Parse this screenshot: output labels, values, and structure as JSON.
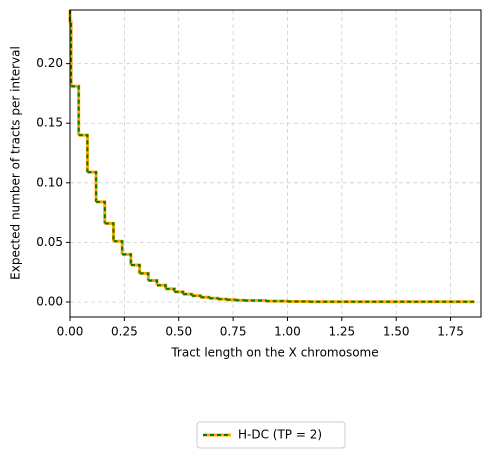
{
  "chart_data": {
    "type": "step",
    "xlabel": "Tract length on the X chromosome",
    "ylabel": "Expected number of tracts per interval",
    "x": [
      0,
      0.005,
      0.04,
      0.08,
      0.12,
      0.16,
      0.2,
      0.24,
      0.28,
      0.32,
      0.36,
      0.4,
      0.44,
      0.48,
      0.52,
      0.56,
      0.6,
      0.64,
      0.68,
      0.72,
      0.76,
      0.8,
      0.9,
      1.0,
      1.1,
      1.86
    ],
    "series": [
      {
        "name": "H-DC (TP = 2)",
        "color": "#ffa500",
        "dash_color": "#007a00",
        "values": [
          0.235,
          0.181,
          0.14,
          0.109,
          0.084,
          0.066,
          0.051,
          0.04,
          0.031,
          0.024,
          0.018,
          0.014,
          0.011,
          0.0085,
          0.0066,
          0.0052,
          0.004,
          0.0031,
          0.0024,
          0.0019,
          0.0015,
          0.0012,
          0.0007,
          0.0004,
          0.0002,
          0.0002
        ]
      }
    ],
    "xlim": [
      0,
      1.89
    ],
    "ylim": [
      -0.0126,
      0.245
    ],
    "xticks": [
      {
        "value": 0,
        "label": "0.00"
      },
      {
        "value": 0.25,
        "label": "0.25"
      },
      {
        "value": 0.5,
        "label": "0.50"
      },
      {
        "value": 0.75,
        "label": "0.75"
      },
      {
        "value": 1,
        "label": "1.00"
      },
      {
        "value": 1.25,
        "label": "1.25"
      },
      {
        "value": 1.5,
        "label": "1.50"
      },
      {
        "value": 1.75,
        "label": "1.75"
      }
    ],
    "yticks": [
      {
        "value": 0,
        "label": "0.00"
      },
      {
        "value": 0.05,
        "label": "0.05"
      },
      {
        "value": 0.1,
        "label": "0.10"
      },
      {
        "value": 0.15,
        "label": "0.15"
      },
      {
        "value": 0.2,
        "label": "0.20"
      }
    ],
    "grid": true,
    "legend": "lower center"
  }
}
